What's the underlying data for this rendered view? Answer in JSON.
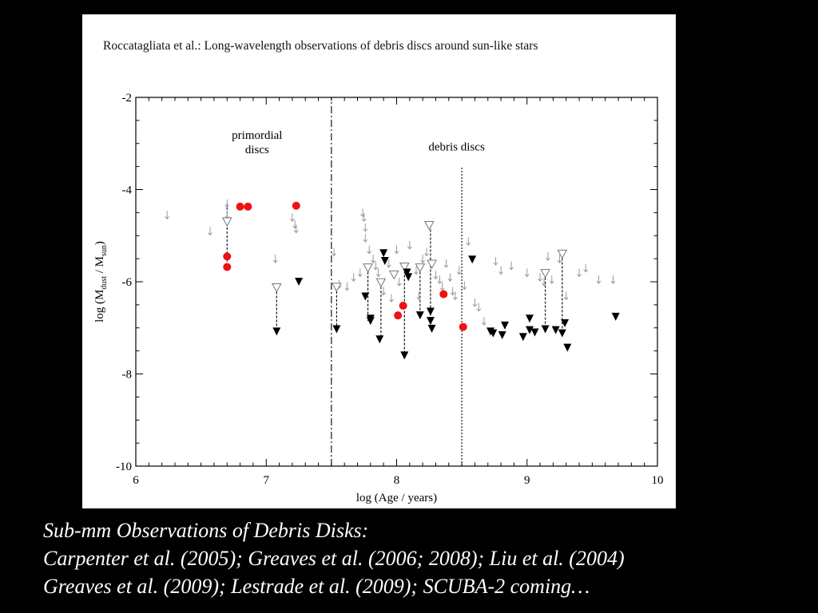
{
  "figure": {
    "header": "Roccatagliata et al.: Long-wavelength observations of debris discs around sun-like stars"
  },
  "caption": {
    "line1": "Sub-mm Observations of Debris Disks:",
    "line2": "Carpenter et al. (2005); Greaves et al. (2006; 2008); Liu et al. (2004)",
    "line3": "Greaves et al. (2009); Lestrade et al. (2009); SCUBA-2 coming…"
  },
  "chart_data": {
    "type": "scatter",
    "xlabel": "log (Age / years)",
    "ylabel": "log (M_dust / M_sun)",
    "xlim": [
      6,
      10
    ],
    "ylim": [
      -10,
      -2
    ],
    "xticks": [
      6,
      7,
      8,
      9,
      10
    ],
    "yticks": [
      -2,
      -4,
      -6,
      -8,
      -10
    ],
    "region_labels": [
      {
        "text_lines": [
          "primordial",
          "discs"
        ],
        "x": 6.93,
        "y": -2.9
      },
      {
        "text_lines": [
          "debris discs"
        ],
        "x": 8.46,
        "y": -3.15
      }
    ],
    "dividers": [
      {
        "x": 7.5,
        "y_from": -10,
        "y_to": -2,
        "style": "dash-dot"
      },
      {
        "x": 8.5,
        "y_from": -10,
        "y_to": -3.5,
        "style": "dotted"
      }
    ],
    "series": [
      {
        "marker": "filled-circle",
        "color": "#ee1111",
        "points": [
          [
            6.7,
            -5.45
          ],
          [
            6.7,
            -5.68
          ],
          [
            6.8,
            -4.37
          ],
          [
            6.86,
            -4.37
          ],
          [
            7.23,
            -4.35
          ],
          [
            8.01,
            -6.73
          ],
          [
            8.05,
            -6.52
          ],
          [
            8.36,
            -6.27
          ],
          [
            8.51,
            -6.98
          ]
        ]
      },
      {
        "marker": "filled-triangle-down",
        "color": "#000000",
        "points": [
          [
            7.08,
            -7.08
          ],
          [
            7.25,
            -6.0
          ],
          [
            7.54,
            -7.03
          ],
          [
            7.76,
            -6.32
          ],
          [
            7.8,
            -6.8
          ],
          [
            7.8,
            -6.85
          ],
          [
            7.87,
            -7.25
          ],
          [
            7.9,
            -5.38
          ],
          [
            7.91,
            -5.55
          ],
          [
            8.06,
            -7.6
          ],
          [
            8.08,
            -5.8
          ],
          [
            8.09,
            -5.9
          ],
          [
            8.18,
            -6.73
          ],
          [
            8.26,
            -6.65
          ],
          [
            8.26,
            -6.85
          ],
          [
            8.27,
            -7.02
          ],
          [
            8.58,
            -5.52
          ],
          [
            8.72,
            -7.08
          ],
          [
            8.74,
            -7.12
          ],
          [
            8.81,
            -7.16
          ],
          [
            8.83,
            -6.95
          ],
          [
            8.97,
            -7.2
          ],
          [
            9.02,
            -6.8
          ],
          [
            9.02,
            -7.05
          ],
          [
            9.06,
            -7.1
          ],
          [
            9.14,
            -7.03
          ],
          [
            9.22,
            -7.05
          ],
          [
            9.27,
            -7.12
          ],
          [
            9.29,
            -6.9
          ],
          [
            9.31,
            -7.43
          ],
          [
            9.68,
            -6.76
          ]
        ]
      },
      {
        "marker": "open-triangle-down",
        "color": "#777777",
        "points": [
          [
            6.7,
            -4.7
          ],
          [
            7.08,
            -6.13
          ],
          [
            7.54,
            -6.12
          ],
          [
            7.78,
            -5.7
          ],
          [
            7.88,
            -6.02
          ],
          [
            7.98,
            -5.85
          ],
          [
            8.06,
            -5.68
          ],
          [
            8.18,
            -5.7
          ],
          [
            8.25,
            -4.78
          ],
          [
            8.27,
            -5.62
          ],
          [
            9.14,
            -5.82
          ],
          [
            9.27,
            -5.4
          ]
        ]
      },
      {
        "marker": "arrow-down",
        "color": "#999999",
        "points": [
          [
            6.24,
            -4.55
          ],
          [
            6.57,
            -4.9
          ],
          [
            6.7,
            -4.3
          ],
          [
            6.7,
            -4.55
          ],
          [
            7.07,
            -5.5
          ],
          [
            7.2,
            -4.6
          ],
          [
            7.22,
            -4.75
          ],
          [
            7.23,
            -4.85
          ],
          [
            7.52,
            -5.35
          ],
          [
            7.56,
            -6.05
          ],
          [
            7.62,
            -6.1
          ],
          [
            7.67,
            -5.9
          ],
          [
            7.72,
            -5.8
          ],
          [
            7.74,
            -4.5
          ],
          [
            7.75,
            -4.6
          ],
          [
            7.76,
            -4.82
          ],
          [
            7.76,
            -5.05
          ],
          [
            7.79,
            -5.3
          ],
          [
            7.82,
            -5.5
          ],
          [
            7.84,
            -5.65
          ],
          [
            7.86,
            -5.8
          ],
          [
            7.9,
            -6.2
          ],
          [
            7.94,
            -5.6
          ],
          [
            7.96,
            -6.35
          ],
          [
            8.0,
            -5.3
          ],
          [
            8.02,
            -6.0
          ],
          [
            8.1,
            -5.2
          ],
          [
            8.15,
            -5.75
          ],
          [
            8.17,
            -6.3
          ],
          [
            8.2,
            -5.5
          ],
          [
            8.23,
            -5.35
          ],
          [
            8.3,
            -5.85
          ],
          [
            8.33,
            -5.95
          ],
          [
            8.35,
            -6.1
          ],
          [
            8.38,
            -5.6
          ],
          [
            8.41,
            -5.9
          ],
          [
            8.43,
            -6.2
          ],
          [
            8.45,
            -6.3
          ],
          [
            8.48,
            -5.75
          ],
          [
            8.52,
            -6.08
          ],
          [
            8.55,
            -5.12
          ],
          [
            8.6,
            -6.45
          ],
          [
            8.63,
            -6.55
          ],
          [
            8.67,
            -6.85
          ],
          [
            8.76,
            -5.55
          ],
          [
            8.8,
            -5.75
          ],
          [
            8.88,
            -5.65
          ],
          [
            9.0,
            -5.8
          ],
          [
            9.1,
            -5.9
          ],
          [
            9.13,
            -6.0
          ],
          [
            9.16,
            -5.45
          ],
          [
            9.19,
            -5.95
          ],
          [
            9.25,
            -5.5
          ],
          [
            9.3,
            -6.3
          ],
          [
            9.4,
            -5.8
          ],
          [
            9.45,
            -5.7
          ],
          [
            9.55,
            -5.95
          ],
          [
            9.66,
            -5.95
          ]
        ]
      }
    ],
    "link_lines": [
      [
        [
          6.7,
          -4.3
        ],
        [
          6.7,
          -5.68
        ]
      ],
      [
        [
          7.08,
          -6.13
        ],
        [
          7.08,
          -7.08
        ]
      ],
      [
        [
          7.54,
          -6.12
        ],
        [
          7.54,
          -7.03
        ]
      ],
      [
        [
          7.78,
          -5.7
        ],
        [
          7.78,
          -6.85
        ]
      ],
      [
        [
          7.88,
          -6.02
        ],
        [
          7.88,
          -7.25
        ]
      ],
      [
        [
          8.06,
          -5.68
        ],
        [
          8.06,
          -7.6
        ]
      ],
      [
        [
          8.18,
          -5.7
        ],
        [
          8.18,
          -6.73
        ]
      ],
      [
        [
          8.26,
          -4.78
        ],
        [
          8.26,
          -7.02
        ]
      ],
      [
        [
          9.14,
          -5.82
        ],
        [
          9.14,
          -7.03
        ]
      ],
      [
        [
          9.27,
          -5.4
        ],
        [
          9.27,
          -7.12
        ]
      ]
    ]
  }
}
